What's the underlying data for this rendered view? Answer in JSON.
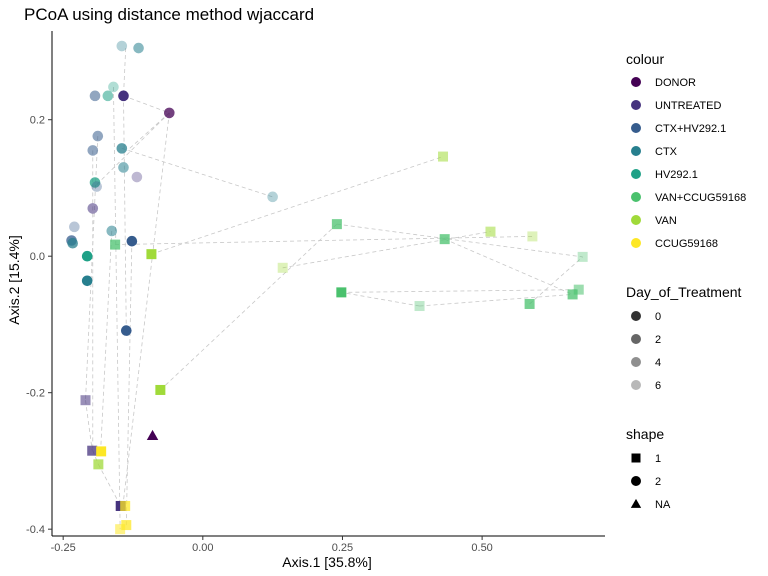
{
  "chart_data": {
    "type": "scatter",
    "title": "PCoA using distance method wjaccard",
    "xlabel": "Axis.1   [35.8%]",
    "ylabel": "Axis.2   [15.4%]",
    "xlim": [
      -0.27,
      0.72
    ],
    "ylim": [
      -0.41,
      0.33
    ],
    "x_ticks": [
      -0.25,
      0.0,
      0.25,
      0.5
    ],
    "x_tick_labels": [
      "-0.25",
      "0.00",
      "0.25",
      "0.50"
    ],
    "y_ticks": [
      -0.4,
      -0.2,
      0.0,
      0.2
    ],
    "y_tick_labels": [
      "-0.4",
      "-0.2",
      "0.0",
      "0.2"
    ],
    "grid": false,
    "legend_position": "right",
    "legends": {
      "colour": {
        "title": "colour",
        "items": [
          {
            "label": "DONOR",
            "color": "#440154"
          },
          {
            "label": "UNTREATED",
            "color": "#46337E"
          },
          {
            "label": "CTX+HV292.1",
            "color": "#365C8D"
          },
          {
            "label": "CTX",
            "color": "#277F8E"
          },
          {
            "label": "HV292.1",
            "color": "#1FA187"
          },
          {
            "label": "VAN+CCUG59168",
            "color": "#4AC16D"
          },
          {
            "label": "VAN",
            "color": "#A0DA39"
          },
          {
            "label": "CCUG59168",
            "color": "#FDE725"
          }
        ]
      },
      "day": {
        "title": "Day_of_Treatment",
        "items": [
          {
            "label": "0",
            "alpha": 1.0
          },
          {
            "label": "2",
            "alpha": 0.75
          },
          {
            "label": "4",
            "alpha": 0.55
          },
          {
            "label": "6",
            "alpha": 0.35
          }
        ]
      },
      "shape": {
        "title": "shape",
        "items": [
          {
            "label": "1",
            "shape": "square"
          },
          {
            "label": "2",
            "shape": "circle"
          },
          {
            "label": "NA",
            "shape": "triangle"
          }
        ]
      }
    },
    "points": [
      {
        "x": -0.145,
        "y": 0.308,
        "group": "CTX",
        "day": "6",
        "shape": "circle"
      },
      {
        "x": -0.115,
        "y": 0.305,
        "group": "CTX",
        "day": "4",
        "shape": "circle"
      },
      {
        "x": -0.16,
        "y": 0.248,
        "group": "HV292.1",
        "day": "6",
        "shape": "circle"
      },
      {
        "x": -0.193,
        "y": 0.235,
        "group": "CTX+HV292.1",
        "day": "4",
        "shape": "circle"
      },
      {
        "x": -0.17,
        "y": 0.235,
        "group": "HV292.1",
        "day": "4",
        "shape": "circle"
      },
      {
        "x": -0.142,
        "y": 0.235,
        "group": "UNTREATED",
        "day": "0",
        "shape": "circle"
      },
      {
        "x": -0.06,
        "y": 0.21,
        "group": "DONOR",
        "day": "2",
        "shape": "circle"
      },
      {
        "x": -0.188,
        "y": 0.176,
        "group": "CTX+HV292.1",
        "day": "4",
        "shape": "circle"
      },
      {
        "x": -0.197,
        "y": 0.155,
        "group": "CTX+HV292.1",
        "day": "4",
        "shape": "circle"
      },
      {
        "x": -0.145,
        "y": 0.158,
        "group": "CTX",
        "day": "2",
        "shape": "circle"
      },
      {
        "x": -0.142,
        "y": 0.13,
        "group": "CTX",
        "day": "4",
        "shape": "circle"
      },
      {
        "x": -0.118,
        "y": 0.116,
        "group": "UNTREATED",
        "day": "6",
        "shape": "circle"
      },
      {
        "x": -0.193,
        "y": 0.108,
        "group": "HV292.1",
        "day": "2",
        "shape": "circle"
      },
      {
        "x": -0.19,
        "y": 0.102,
        "group": "CTX+HV292.1",
        "day": "6",
        "shape": "circle"
      },
      {
        "x": 0.125,
        "y": 0.087,
        "group": "CTX",
        "day": "6",
        "shape": "circle"
      },
      {
        "x": -0.197,
        "y": 0.07,
        "group": "UNTREATED",
        "day": "4",
        "shape": "circle"
      },
      {
        "x": -0.23,
        "y": 0.043,
        "group": "CTX+HV292.1",
        "day": "6",
        "shape": "circle"
      },
      {
        "x": -0.163,
        "y": 0.037,
        "group": "CTX",
        "day": "4",
        "shape": "circle"
      },
      {
        "x": -0.235,
        "y": 0.023,
        "group": "CTX+HV292.1",
        "day": "2",
        "shape": "circle"
      },
      {
        "x": -0.233,
        "y": 0.019,
        "group": "CTX",
        "day": "2",
        "shape": "circle"
      },
      {
        "x": -0.127,
        "y": 0.022,
        "group": "CTX+HV292.1",
        "day": "0",
        "shape": "circle"
      },
      {
        "x": -0.207,
        "y": 0.0,
        "group": "HV292.1",
        "day": "0",
        "shape": "circle"
      },
      {
        "x": -0.207,
        "y": -0.036,
        "group": "CTX",
        "day": "0",
        "shape": "circle"
      },
      {
        "x": -0.137,
        "y": -0.109,
        "group": "CTX+HV292.1",
        "day": "0",
        "shape": "circle"
      },
      {
        "x": -0.157,
        "y": 0.017,
        "group": "VAN+CCUG59168",
        "day": "2",
        "shape": "square"
      },
      {
        "x": -0.092,
        "y": 0.003,
        "group": "VAN",
        "day": "0",
        "shape": "square"
      },
      {
        "x": 0.43,
        "y": 0.146,
        "group": "VAN",
        "day": "4",
        "shape": "square"
      },
      {
        "x": 0.24,
        "y": 0.047,
        "group": "VAN+CCUG59168",
        "day": "2",
        "shape": "square"
      },
      {
        "x": 0.515,
        "y": 0.036,
        "group": "VAN",
        "day": "4",
        "shape": "square"
      },
      {
        "x": 0.59,
        "y": 0.029,
        "group": "VAN",
        "day": "6",
        "shape": "square"
      },
      {
        "x": 0.433,
        "y": 0.025,
        "group": "VAN+CCUG59168",
        "day": "2",
        "shape": "square"
      },
      {
        "x": 0.68,
        "y": -0.001,
        "group": "VAN+CCUG59168",
        "day": "6",
        "shape": "square"
      },
      {
        "x": 0.143,
        "y": -0.017,
        "group": "VAN",
        "day": "6",
        "shape": "square"
      },
      {
        "x": 0.248,
        "y": -0.053,
        "group": "VAN+CCUG59168",
        "day": "0",
        "shape": "square"
      },
      {
        "x": 0.673,
        "y": -0.049,
        "group": "VAN+CCUG59168",
        "day": "4",
        "shape": "square"
      },
      {
        "x": 0.662,
        "y": -0.056,
        "group": "VAN+CCUG59168",
        "day": "2",
        "shape": "square"
      },
      {
        "x": 0.585,
        "y": -0.07,
        "group": "VAN+CCUG59168",
        "day": "2",
        "shape": "square"
      },
      {
        "x": 0.388,
        "y": -0.073,
        "group": "VAN+CCUG59168",
        "day": "6",
        "shape": "square"
      },
      {
        "x": -0.076,
        "y": -0.196,
        "group": "VAN",
        "day": "0",
        "shape": "square"
      },
      {
        "x": -0.21,
        "y": -0.211,
        "group": "UNTREATED",
        "day": "4",
        "shape": "square"
      },
      {
        "x": -0.09,
        "y": -0.263,
        "group": "DONOR",
        "day": "0",
        "shape": "triangle"
      },
      {
        "x": -0.198,
        "y": -0.285,
        "group": "UNTREATED",
        "day": "2",
        "shape": "square"
      },
      {
        "x": -0.182,
        "y": -0.286,
        "group": "CCUG59168",
        "day": "0",
        "shape": "square"
      },
      {
        "x": -0.187,
        "y": -0.305,
        "group": "VAN",
        "day": "2",
        "shape": "square"
      },
      {
        "x": -0.147,
        "y": -0.366,
        "group": "UNTREATED",
        "day": "0",
        "shape": "square"
      },
      {
        "x": -0.139,
        "y": -0.366,
        "group": "CCUG59168",
        "day": "2",
        "shape": "square"
      },
      {
        "x": -0.137,
        "y": -0.394,
        "group": "CCUG59168",
        "day": "2",
        "shape": "square"
      },
      {
        "x": -0.148,
        "y": -0.4,
        "group": "CCUG59168",
        "day": "4",
        "shape": "square"
      }
    ],
    "trajectories": [
      [
        -0.142,
        0.235,
        -0.06,
        0.21
      ],
      [
        -0.06,
        0.21,
        -0.135,
        0.155
      ],
      [
        -0.06,
        0.21,
        -0.19,
        0.105
      ],
      [
        -0.145,
        0.158,
        0.125,
        0.087
      ],
      [
        -0.138,
        0.305,
        -0.142,
        0.235
      ],
      [
        -0.06,
        0.21,
        -0.143,
        -0.365
      ],
      [
        -0.137,
        -0.109,
        -0.142,
        0.235
      ],
      [
        -0.197,
        0.155,
        -0.197,
        -0.285
      ],
      [
        -0.188,
        0.176,
        -0.21,
        -0.211
      ],
      [
        -0.163,
        0.037,
        -0.183,
        -0.286
      ],
      [
        -0.16,
        0.248,
        -0.148,
        -0.4
      ],
      [
        -0.127,
        0.022,
        -0.137,
        -0.394
      ],
      [
        -0.157,
        0.017,
        0.59,
        0.029
      ],
      [
        -0.092,
        0.003,
        0.43,
        0.146
      ],
      [
        -0.076,
        -0.196,
        0.24,
        0.047
      ],
      [
        0.24,
        0.047,
        0.68,
        -0.001
      ],
      [
        0.143,
        -0.017,
        0.515,
        0.036
      ],
      [
        0.248,
        -0.053,
        0.673,
        -0.049
      ],
      [
        0.388,
        -0.073,
        0.662,
        -0.056
      ],
      [
        0.585,
        -0.07,
        0.68,
        -0.001
      ],
      [
        0.433,
        0.025,
        0.662,
        -0.056
      ],
      [
        0.388,
        -0.073,
        0.248,
        -0.053
      ],
      [
        -0.197,
        -0.285,
        -0.187,
        -0.305
      ],
      [
        -0.187,
        -0.305,
        -0.147,
        -0.366
      ],
      [
        -0.21,
        -0.211,
        -0.198,
        -0.285
      ]
    ]
  }
}
